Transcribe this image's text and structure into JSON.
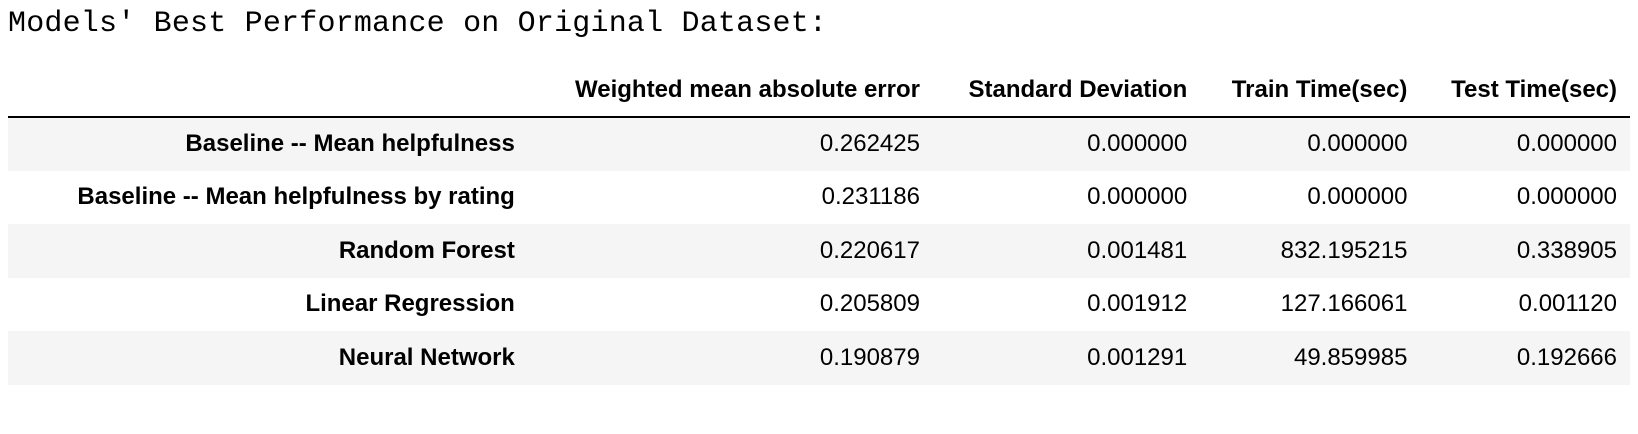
{
  "heading": "Models' Best Performance on Original Dataset:",
  "table": {
    "columns": [
      "",
      "Weighted mean absolute error",
      "Standard Deviation",
      "Train Time(sec)",
      "Test Time(sec)"
    ],
    "rows": [
      {
        "label": "Baseline -- Mean helpfulness",
        "values": [
          "0.262425",
          "0.000000",
          "0.000000",
          "0.000000"
        ]
      },
      {
        "label": "Baseline -- Mean helpfulness by rating",
        "values": [
          "0.231186",
          "0.000000",
          "0.000000",
          "0.000000"
        ]
      },
      {
        "label": "Random Forest",
        "values": [
          "0.220617",
          "0.001481",
          "832.195215",
          "0.338905"
        ]
      },
      {
        "label": "Linear Regression",
        "values": [
          "0.205809",
          "0.001912",
          "127.166061",
          "0.001120"
        ]
      },
      {
        "label": "Neural Network",
        "values": [
          "0.190879",
          "0.001291",
          "49.859985",
          "0.192666"
        ]
      }
    ]
  },
  "colors": {
    "stripe_row": "#f5f5f5",
    "plain_row": "#ffffff",
    "header_rule": "#000000",
    "text": "#000000"
  }
}
